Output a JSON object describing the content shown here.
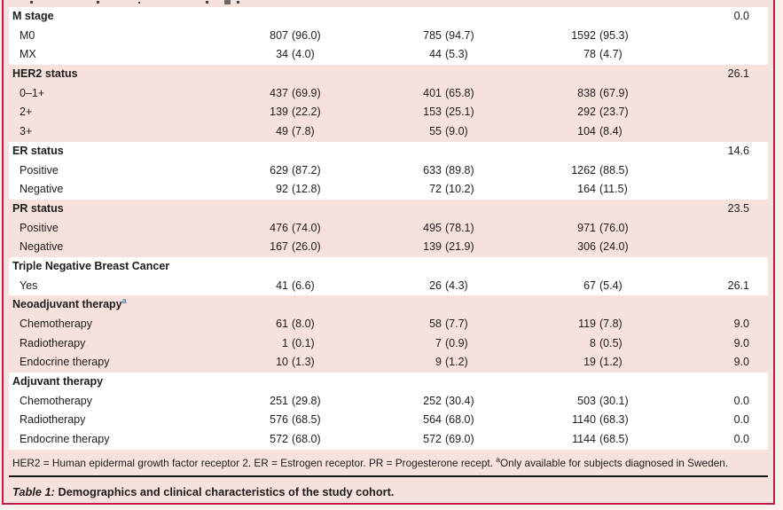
{
  "colors": {
    "frame_border": "#c11a4b",
    "row_pink": "#f6e1dc",
    "row_white": "#ffffff",
    "page_background": "#fcefec",
    "text": "#1c1c1c",
    "footnote_marker_blue": "#4a87b0",
    "rule_black": "#141414"
  },
  "table": {
    "sections": [
      {
        "bg": "white",
        "rows": [
          {
            "header": true,
            "label": "M stage",
            "missing": "0.0"
          },
          {
            "label": "M0",
            "c1": "807 (96.0)",
            "c2": "785 (94.7)",
            "c3": "1592 (95.3)"
          },
          {
            "label": "MX",
            "c1": "34 (4.0)",
            "c2": "44 (5.3)",
            "c3": "78 (4.7)"
          }
        ]
      },
      {
        "bg": "pink",
        "rows": [
          {
            "header": true,
            "label": "HER2 status",
            "missing": "26.1"
          },
          {
            "label": "0–1+",
            "c1": "437 (69.9)",
            "c2": "401 (65.8)",
            "c3": "838 (67.9)"
          },
          {
            "label": "2+",
            "c1": "139 (22.2)",
            "c2": "153 (25.1)",
            "c3": "292 (23.7)"
          },
          {
            "label": "3+",
            "c1": "49 (7.8)",
            "c2": "55 (9.0)",
            "c3": "104 (8.4)"
          }
        ]
      },
      {
        "bg": "white",
        "rows": [
          {
            "header": true,
            "label": "ER status",
            "missing": "14.6"
          },
          {
            "label": "Positive",
            "c1": "629 (87.2)",
            "c2": "633 (89.8)",
            "c3": "1262 (88.5)"
          },
          {
            "label": "Negative",
            "c1": "92 (12.8)",
            "c2": "72 (10.2)",
            "c3": "164 (11.5)"
          }
        ]
      },
      {
        "bg": "pink",
        "rows": [
          {
            "header": true,
            "label": "PR status",
            "missing": "23.5"
          },
          {
            "label": "Positive",
            "c1": "476 (74.0)",
            "c2": "495 (78.1)",
            "c3": "971 (76.0)"
          },
          {
            "label": "Negative",
            "c1": "167 (26.0)",
            "c2": "139 (21.9)",
            "c3": "306 (24.0)"
          }
        ]
      },
      {
        "bg": "white",
        "rows": [
          {
            "header": true,
            "label": "Triple Negative Breast Cancer"
          },
          {
            "label": "Yes",
            "c1": "41 (6.6)",
            "c2": "26 (4.3)",
            "c3": "67 (5.4)",
            "missing": "26.1"
          }
        ]
      },
      {
        "bg": "pink",
        "rows": [
          {
            "header": true,
            "label": "Neoadjuvant therapy",
            "sup": "a"
          },
          {
            "label": "Chemotherapy",
            "c1": "61 (8.0)",
            "c2": "58 (7.7)",
            "c3": "119 (7.8)",
            "missing": "9.0"
          },
          {
            "label": "Radiotherapy",
            "c1": "1 (0.1)",
            "c2": "7 (0.9)",
            "c3": "8 (0.5)",
            "missing": "9.0"
          },
          {
            "label": "Endocrine therapy",
            "c1": "10 (1.3)",
            "c2": "9 (1.2)",
            "c3": "19 (1.2)",
            "missing": "9.0"
          }
        ]
      },
      {
        "bg": "white",
        "rows": [
          {
            "header": true,
            "label": "Adjuvant therapy"
          },
          {
            "label": "Chemotherapy",
            "c1": "251 (29.8)",
            "c2": "252 (30.4)",
            "c3": "503 (30.1)",
            "missing": "0.0"
          },
          {
            "label": "Radiotherapy",
            "c1": "576 (68.5)",
            "c2": "564 (68.0)",
            "c3": "1140 (68.3)",
            "missing": "0.0"
          },
          {
            "label": "Endocrine therapy",
            "c1": "572 (68.0)",
            "c2": "572 (69.0)",
            "c3": "1144 (68.5)",
            "missing": "0.0"
          }
        ]
      }
    ],
    "footnote": {
      "pre_sup": "HER2 = Human epidermal growth factor receptor 2. ER = Estrogen receptor. PR = Progesterone recept. ",
      "sup": "a",
      "post_sup": "Only available for subjects diagnosed in Sweden."
    },
    "caption": {
      "label": "Table 1:",
      "text": " Demographics and clinical characteristics of the study cohort."
    }
  }
}
